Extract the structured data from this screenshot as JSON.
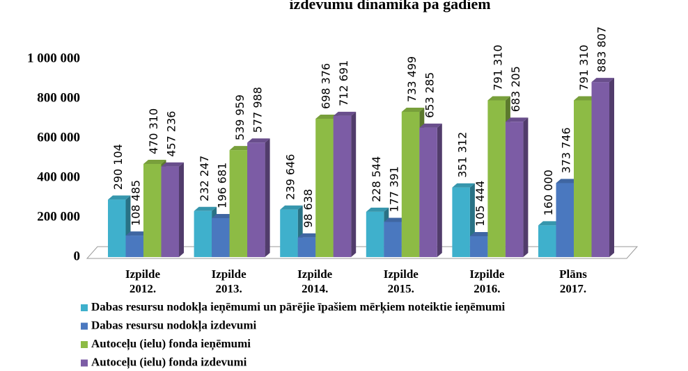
{
  "chart_data": {
    "type": "bar3d",
    "title": "izdevumu dinamika pa gadiem",
    "categories": [
      "Izpilde 2012.",
      "Izpilde 2013.",
      "Izpilde 2014.",
      "Izpilde 2015.",
      "Izpilde 2016.",
      "Plāns 2017."
    ],
    "series": [
      {
        "name": "Dabas resursu nodokļa ieņēmumi un pārējie īpašiem mērķiem noteiktie ieņēmumi",
        "color": "#3fb0cc",
        "values": [
          290104,
          232247,
          239646,
          228544,
          351312,
          160000
        ],
        "value_labels": [
          "290 104",
          "232 247",
          "239 646",
          "228 544",
          "351 312",
          "160 000"
        ]
      },
      {
        "name": "Dabas resursu nodokļa izdevumi",
        "color": "#4a78bf",
        "values": [
          108485,
          196681,
          98638,
          177391,
          105444,
          373746
        ],
        "value_labels": [
          "108 485",
          "196 681",
          "98 638",
          "177 391",
          "105 444",
          "373 746"
        ]
      },
      {
        "name": "Autoceļu (ielu) fonda ieņēmumi",
        "color": "#8dbb45",
        "values": [
          470310,
          539959,
          698376,
          733499,
          791310,
          791310
        ],
        "value_labels": [
          "470 310",
          "539 959",
          "698 376",
          "733 499",
          "791 310",
          "791 310"
        ]
      },
      {
        "name": "Autoceļu (ielu) fonda izdevumi",
        "color": "#7c5ca5",
        "values": [
          457236,
          577988,
          712691,
          653285,
          683205,
          883807
        ],
        "value_labels": [
          "457 236",
          "577 988",
          "712 691",
          "653 285",
          "683 205",
          "883 807"
        ]
      }
    ],
    "ylim": [
      0,
      1000000
    ],
    "yticks": [
      0,
      {
        "value": 200000,
        "label": "200 000"
      },
      {
        "value": 400000,
        "label": "400 000"
      },
      {
        "value": 600000,
        "label": "600 000"
      },
      {
        "value": 800000,
        "label": "800 000"
      },
      {
        "value": 1000000,
        "label": "1 000 000"
      }
    ],
    "grid": false,
    "legend": "bottom"
  }
}
